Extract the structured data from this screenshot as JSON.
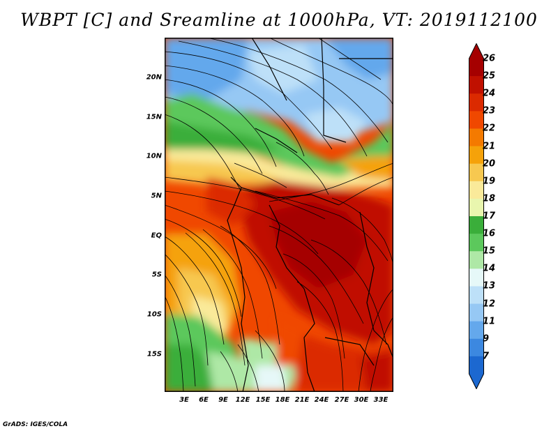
{
  "title": "WBPT [C] and Sreamline at 1000hPa, VT: 2019112100",
  "credit": "GrADS: IGES/COLA",
  "map": {
    "lat_labels": [
      "20N",
      "15N",
      "10N",
      "5N",
      "EQ",
      "5S",
      "10S",
      "15S"
    ],
    "lon_labels": [
      "3E",
      "6E",
      "9E",
      "12E",
      "15E",
      "18E",
      "21E",
      "24E",
      "27E",
      "30E",
      "33E"
    ]
  },
  "colorbar": {
    "labels": [
      "26",
      "25",
      "24",
      "23",
      "22",
      "21",
      "20",
      "19",
      "18",
      "17",
      "16",
      "15",
      "14",
      "13",
      "12",
      "11",
      "9",
      "7"
    ],
    "colors": [
      "#a50000",
      "#c01000",
      "#db2a00",
      "#f04800",
      "#f47a00",
      "#f5a20a",
      "#f7c850",
      "#faea9a",
      "#e9f6ae",
      "#3aae3a",
      "#5cc85c",
      "#aee8a6",
      "#e6f8f8",
      "#bde0f8",
      "#96c8f4",
      "#64a8ec",
      "#3c88e0",
      "#1c68d0"
    ]
  }
}
